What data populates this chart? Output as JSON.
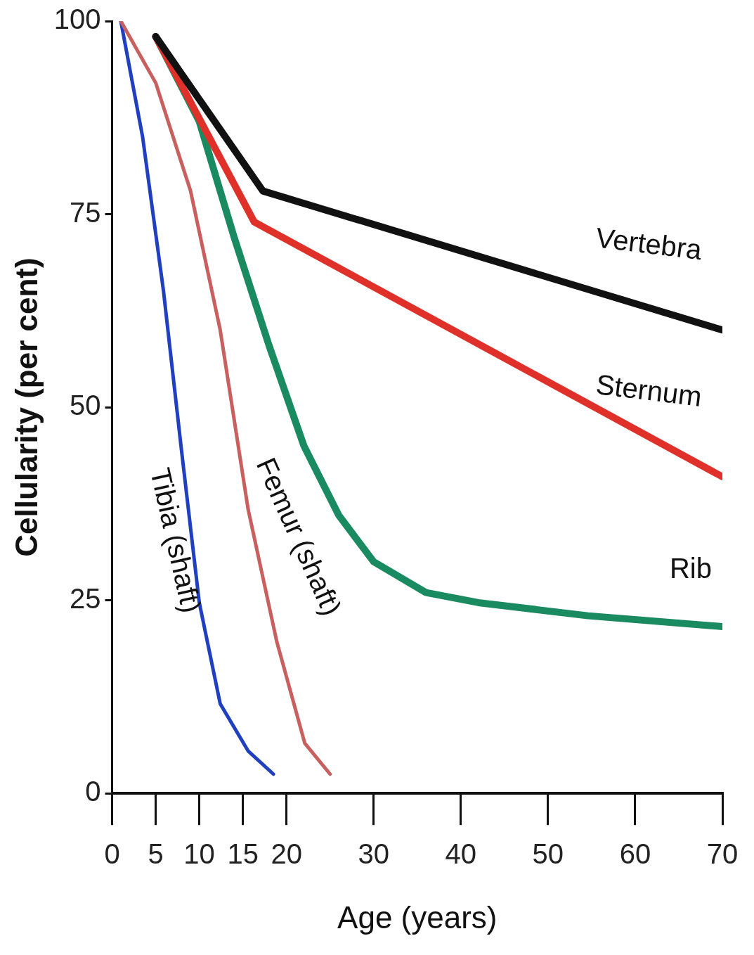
{
  "chart_data": {
    "type": "line",
    "xlabel": "Age (years)",
    "ylabel": "Cellularity (per cent)",
    "xlim": [
      0,
      70
    ],
    "xticks": [
      0,
      5,
      10,
      15,
      20,
      30,
      40,
      50,
      60,
      70
    ],
    "ylim": [
      0,
      100
    ],
    "yticks": [
      0,
      25,
      50,
      75,
      100
    ],
    "grid": false,
    "legend": false,
    "marker": "none",
    "line_style": "solid",
    "series": [
      {
        "name": "Vertebra",
        "color": "#111111",
        "x": [
          5,
          17.3,
          70
        ],
        "values": [
          98,
          78,
          60
        ]
      },
      {
        "name": "Sternum",
        "color": "#e0302a",
        "x": [
          5,
          16.3,
          70
        ],
        "values": [
          98,
          74,
          41
        ]
      },
      {
        "name": "Rib",
        "color": "#1a8a60",
        "x": [
          5,
          10,
          14,
          18,
          22,
          26,
          30,
          36,
          42,
          54.6,
          70
        ],
        "values": [
          98,
          87,
          72,
          58,
          45,
          36,
          30,
          26,
          24.7,
          23,
          21.6
        ]
      },
      {
        "name": "Femur (shaft)",
        "color": "#c86060",
        "x": [
          1,
          5,
          9,
          12.4,
          15.6,
          18.9,
          22.1,
          25
        ],
        "values": [
          100,
          92,
          78,
          60,
          36.8,
          19.6,
          6.5,
          2.5
        ]
      },
      {
        "name": "Tibia (shaft)",
        "color": "#2040c0",
        "x": [
          1,
          3.5,
          5.9,
          7.9,
          10,
          12.4,
          15.6,
          18.5
        ],
        "values": [
          100,
          85,
          65,
          45,
          24.7,
          11.6,
          5.5,
          2.5
        ]
      }
    ]
  }
}
